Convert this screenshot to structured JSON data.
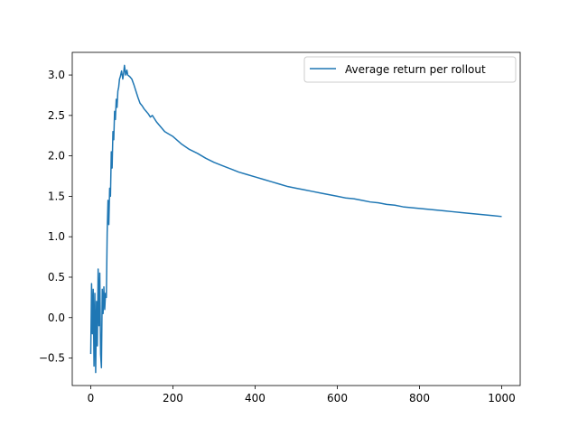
{
  "chart_data": {
    "type": "line",
    "title": "",
    "xlabel": "",
    "ylabel": "",
    "xlim": [
      -45,
      1045
    ],
    "ylim": [
      -0.84,
      3.28
    ],
    "x_ticks": [
      0,
      200,
      400,
      600,
      800,
      1000
    ],
    "x_tick_labels": [
      "0",
      "200",
      "400",
      "600",
      "800",
      "1000"
    ],
    "y_ticks": [
      -0.5,
      0.0,
      0.5,
      1.0,
      1.5,
      2.0,
      2.5,
      3.0
    ],
    "y_tick_labels": [
      "−0.5",
      "0.0",
      "0.5",
      "1.0",
      "1.5",
      "2.0",
      "2.5",
      "3.0"
    ],
    "grid": false,
    "legend": {
      "position": "top-right",
      "entries": [
        "Average return per rollout"
      ]
    },
    "series": [
      {
        "name": "Average return per rollout",
        "color": "#1f77b4",
        "x": [
          0,
          2,
          4,
          6,
          8,
          10,
          12,
          14,
          16,
          18,
          20,
          22,
          24,
          26,
          28,
          30,
          32,
          34,
          36,
          38,
          40,
          42,
          44,
          46,
          48,
          50,
          52,
          54,
          56,
          58,
          60,
          62,
          64,
          66,
          68,
          70,
          72,
          75,
          78,
          80,
          82,
          85,
          88,
          90,
          95,
          100,
          105,
          110,
          115,
          120,
          125,
          130,
          135,
          140,
          145,
          150,
          160,
          170,
          180,
          190,
          200,
          220,
          240,
          260,
          280,
          300,
          320,
          340,
          360,
          380,
          400,
          420,
          440,
          460,
          480,
          500,
          520,
          540,
          560,
          580,
          600,
          620,
          640,
          660,
          680,
          700,
          720,
          740,
          760,
          780,
          800,
          820,
          840,
          860,
          880,
          900,
          920,
          940,
          960,
          980,
          1000
        ],
        "y": [
          -0.45,
          0.42,
          -0.2,
          0.35,
          -0.6,
          0.3,
          -0.68,
          0.2,
          -0.35,
          0.6,
          -0.1,
          0.55,
          -0.45,
          -0.62,
          0.35,
          0.05,
          0.38,
          0.1,
          0.3,
          0.25,
          1.05,
          1.45,
          1.15,
          1.6,
          1.5,
          2.05,
          1.85,
          2.3,
          2.2,
          2.55,
          2.45,
          2.7,
          2.6,
          2.8,
          2.85,
          2.95,
          2.98,
          3.05,
          2.95,
          3.02,
          3.12,
          3.0,
          3.06,
          3.0,
          2.98,
          2.95,
          2.88,
          2.8,
          2.72,
          2.65,
          2.62,
          2.58,
          2.55,
          2.52,
          2.48,
          2.5,
          2.42,
          2.36,
          2.3,
          2.27,
          2.24,
          2.15,
          2.08,
          2.03,
          1.97,
          1.92,
          1.88,
          1.84,
          1.8,
          1.77,
          1.74,
          1.71,
          1.68,
          1.65,
          1.62,
          1.6,
          1.58,
          1.56,
          1.54,
          1.52,
          1.5,
          1.48,
          1.47,
          1.45,
          1.43,
          1.42,
          1.4,
          1.39,
          1.37,
          1.36,
          1.35,
          1.34,
          1.33,
          1.32,
          1.31,
          1.3,
          1.29,
          1.28,
          1.27,
          1.26,
          1.25
        ]
      }
    ]
  }
}
